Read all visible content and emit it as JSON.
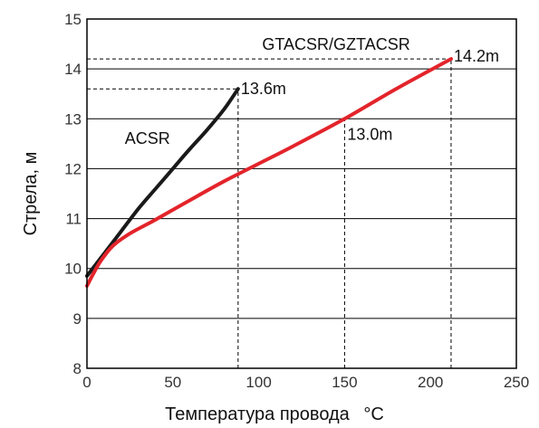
{
  "chart_data": {
    "type": "line",
    "title": "",
    "xlabel": "Температура провода",
    "xlabel_unit": "°C",
    "ylabel": "Стрела, м",
    "xlim": [
      0,
      250
    ],
    "ylim": [
      8,
      15
    ],
    "x_ticks": [
      "0",
      "50",
      "100",
      "150",
      "200",
      "250"
    ],
    "y_ticks": [
      "8",
      "9",
      "10",
      "11",
      "12",
      "13",
      "14",
      "15"
    ],
    "grid": "horizontal",
    "colors": {
      "ACSR": "#1a1a1a",
      "GTACSR/GZTACSR": "#e3242b"
    },
    "series": [
      {
        "name": "ACSR",
        "x": [
          0,
          10,
          20,
          30,
          40,
          50,
          60,
          70,
          80,
          88
        ],
        "y": [
          9.85,
          10.3,
          10.75,
          11.2,
          11.6,
          12.0,
          12.4,
          12.78,
          13.2,
          13.6
        ]
      },
      {
        "name": "GTACSR/GZTACSR",
        "x": [
          0,
          3,
          8,
          15,
          25,
          40,
          60,
          80,
          100,
          120,
          150,
          180,
          212
        ],
        "y": [
          9.65,
          9.85,
          10.15,
          10.45,
          10.7,
          10.98,
          11.37,
          11.75,
          12.1,
          12.45,
          13.0,
          13.6,
          14.2
        ]
      }
    ],
    "annotations": [
      {
        "label": "13.6m",
        "x": 88,
        "y": 13.6
      },
      {
        "label": "13.0m",
        "x": 150,
        "y": 13.0
      },
      {
        "label": "14.2m",
        "x": 212,
        "y": 14.2
      }
    ]
  }
}
